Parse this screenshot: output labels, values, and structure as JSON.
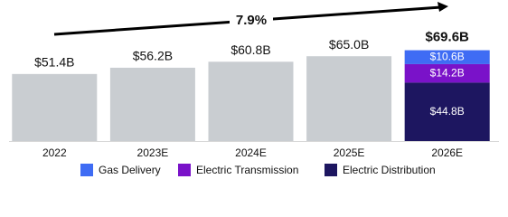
{
  "chart_data": {
    "type": "stacked_bar",
    "annotation": "7.9%",
    "categories": [
      "2022",
      "2023E",
      "2024E",
      "2025E",
      "2026E"
    ],
    "totals": {
      "values": [
        51.4,
        56.2,
        60.8,
        65.0,
        69.6
      ],
      "value_labels": [
        "$51.4B",
        "$56.2B",
        "$60.8B",
        "$65.0B",
        "$69.6B"
      ],
      "color": "#c9cdd1"
    },
    "series": [
      {
        "name": "Electric Distribution",
        "color": "#1d1660",
        "values": [
          null,
          null,
          null,
          null,
          44.8
        ],
        "value_labels": [
          null,
          null,
          null,
          null,
          "$44.8B"
        ]
      },
      {
        "name": "Electric Transmission",
        "color": "#7a12c9",
        "values": [
          null,
          null,
          null,
          null,
          14.2
        ],
        "value_labels": [
          null,
          null,
          null,
          null,
          "$14.2B"
        ]
      },
      {
        "name": "Gas Delivery",
        "color": "#3f6cf4",
        "values": [
          null,
          null,
          null,
          null,
          10.6
        ],
        "value_labels": [
          null,
          null,
          null,
          null,
          "$10.6B"
        ]
      }
    ],
    "legend_order": [
      2,
      1,
      0
    ],
    "ylim": [
      0,
      70
    ]
  }
}
